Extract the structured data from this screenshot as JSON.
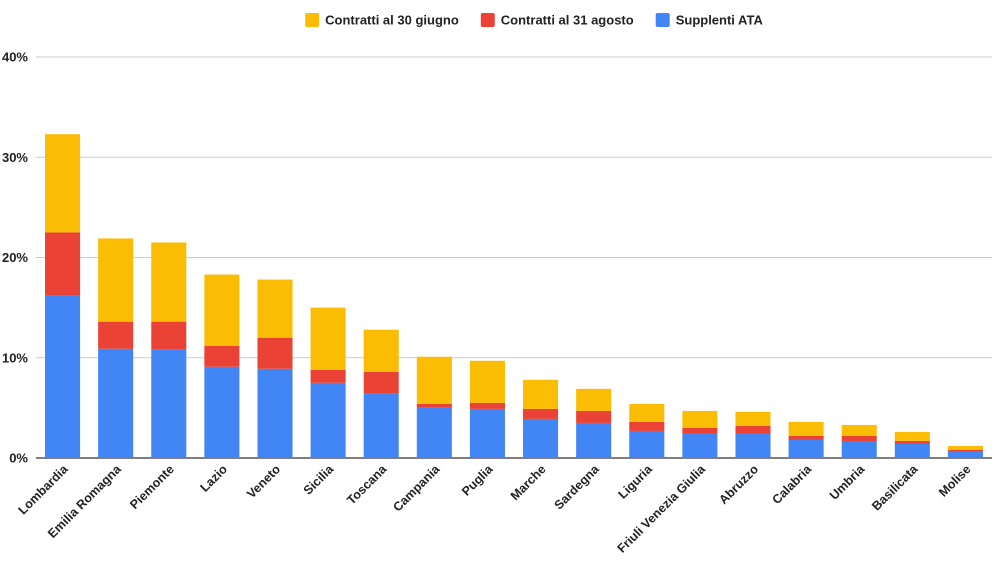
{
  "chart_data": {
    "type": "bar",
    "stacked": true,
    "title": "",
    "xlabel": "",
    "ylabel": "",
    "ylim": [
      0,
      40
    ],
    "y_ticks": [
      "0%",
      "10%",
      "20%",
      "30%",
      "40%"
    ],
    "y_tick_values": [
      0,
      10,
      20,
      30,
      40
    ],
    "grid": true,
    "legend_position": "top-center",
    "categories": [
      "Lombardia",
      "Emilia Romagna",
      "Piemonte",
      "Lazio",
      "Veneto",
      "Sicilia",
      "Toscana",
      "Campania",
      "Puglia",
      "Marche",
      "Sardegna",
      "Liguria",
      "Friuli Venezia Giulia",
      "Abruzzo",
      "Calabria",
      "Umbria",
      "Basilicata",
      "Molise"
    ],
    "series": [
      {
        "name": "Supplenti ATA",
        "color": "#4285F4",
        "values": [
          16.2,
          10.9,
          10.8,
          9.1,
          8.9,
          7.5,
          6.4,
          5.0,
          4.9,
          3.9,
          3.5,
          2.7,
          2.4,
          2.4,
          1.8,
          1.7,
          1.4,
          0.7
        ]
      },
      {
        "name": "Contratti al 31 agosto",
        "color": "#EA4335",
        "values": [
          6.3,
          2.7,
          2.8,
          2.1,
          3.1,
          1.3,
          2.2,
          0.4,
          0.6,
          1.0,
          1.2,
          0.9,
          0.6,
          0.8,
          0.4,
          0.5,
          0.3,
          0.1
        ]
      },
      {
        "name": "Contratti al 30 giugno",
        "color": "#FBBC04",
        "values": [
          9.8,
          8.3,
          7.9,
          7.1,
          5.8,
          6.2,
          4.2,
          4.7,
          4.2,
          2.9,
          2.2,
          1.8,
          1.7,
          1.4,
          1.4,
          1.1,
          0.9,
          0.4
        ]
      }
    ],
    "legend_order": [
      "Contratti al 30 giugno",
      "Contratti al 31 agosto",
      "Supplenti ATA"
    ]
  }
}
